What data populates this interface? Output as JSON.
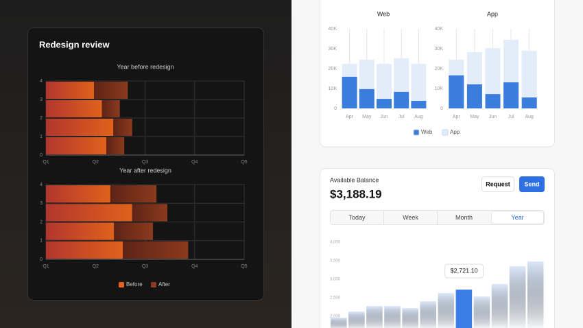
{
  "left_card": {
    "title": "Redesign review"
  },
  "balance_card": {
    "label": "Available Balance",
    "amount": "$3,188.19",
    "buttons": [
      "Request",
      "Send"
    ],
    "tabs": [
      "Today",
      "Week",
      "Month",
      "Year"
    ],
    "active_tab": 3
  },
  "chart_data": [
    {
      "type": "hbar",
      "title": "Year before redesign",
      "stacked": true,
      "grid": true,
      "xlim": [
        0,
        4
      ],
      "xticks": [
        {
          "value": 0,
          "label": "Q1"
        },
        {
          "value": 1,
          "label": "Q2"
        },
        {
          "value": 2,
          "label": "Q3"
        },
        {
          "value": 3,
          "label": "Q4"
        },
        {
          "value": 4,
          "label": "Q5"
        }
      ],
      "ylim": [
        0,
        4
      ],
      "yticks": [
        0,
        1,
        2,
        3,
        4
      ],
      "series": [
        {
          "name": "Before",
          "color": "#e0621c",
          "values": [
            1.22,
            1.36,
            1.13,
            0.97
          ]
        },
        {
          "name": "After",
          "color": "#8b3a1e",
          "values": [
            0.36,
            0.38,
            0.36,
            0.68
          ]
        }
      ]
    },
    {
      "type": "hbar",
      "title": "Year after redesign",
      "stacked": true,
      "grid": true,
      "xlim": [
        0,
        4
      ],
      "xticks": [
        {
          "value": 0,
          "label": "Q1"
        },
        {
          "value": 1,
          "label": "Q2"
        },
        {
          "value": 2,
          "label": "Q3"
        },
        {
          "value": 3,
          "label": "Q4"
        },
        {
          "value": 4,
          "label": "Q5"
        }
      ],
      "ylim": [
        0,
        4
      ],
      "yticks": [
        0,
        1,
        2,
        3,
        4
      ],
      "series": [
        {
          "color": "#e0621c",
          "values": [
            1.55,
            1.37,
            1.74,
            1.3
          ]
        },
        {
          "color": "#8b3a1e",
          "values": [
            1.32,
            0.79,
            0.71,
            0.93
          ]
        }
      ]
    },
    {
      "type": "overlay",
      "title": "Web",
      "categories": [
        "Apr",
        "May",
        "Jun",
        "Jul",
        "Aug"
      ],
      "ylim": [
        0,
        40000
      ],
      "yticks": [
        0,
        {
          "value": 10000,
          "label": "10K"
        },
        {
          "value": 20000,
          "label": "20K"
        },
        {
          "value": 30000,
          "label": "30K"
        },
        {
          "value": 40000,
          "label": "40K"
        }
      ],
      "series": [
        {
          "name": "Web",
          "color": "#3b7ddd",
          "values": [
            15900,
            9700,
            4800,
            8300,
            3800
          ]
        },
        {
          "name": "App",
          "color": "#e3ecf9",
          "values": [
            22400,
            24500,
            22400,
            25200,
            22400
          ]
        }
      ]
    },
    {
      "type": "overlay",
      "title": "App",
      "categories": [
        "Apr",
        "May",
        "Jun",
        "Jul",
        "Aug"
      ],
      "ylim": [
        0,
        40000
      ],
      "yticks": [
        0,
        {
          "value": 10000,
          "label": "10K"
        },
        {
          "value": 20000,
          "label": "20K"
        },
        {
          "value": 30000,
          "label": "30K"
        },
        {
          "value": 40000,
          "label": "40K"
        }
      ],
      "series": [
        {
          "color": "#3b7ddd",
          "values": [
            16600,
            12100,
            7200,
            13100,
            5500
          ]
        },
        {
          "color": "#e3ecf9",
          "values": [
            24500,
            28300,
            30300,
            34500,
            29000
          ]
        }
      ]
    },
    {
      "type": "column",
      "color": "#dde9fb",
      "highlight_color": "#3b7ee8",
      "ylim": [
        2000,
        4000
      ],
      "yticks": [
        {
          "value": 2000,
          "label": "2,000"
        },
        {
          "value": 2500,
          "label": "2,500"
        },
        {
          "value": 3000,
          "label": "3,000"
        },
        {
          "value": 3500,
          "label": "3,500"
        },
        {
          "value": 4000,
          "label": "4,000"
        }
      ],
      "values": [
        1963,
        2130,
        2278,
        2278,
        2222,
        2407,
        2630,
        2721.1,
        2537,
        2870,
        3352,
        3481
      ],
      "value_labels": [
        null,
        null,
        null,
        null,
        null,
        null,
        null,
        "$2,721.10",
        null,
        null,
        null,
        null
      ]
    }
  ]
}
